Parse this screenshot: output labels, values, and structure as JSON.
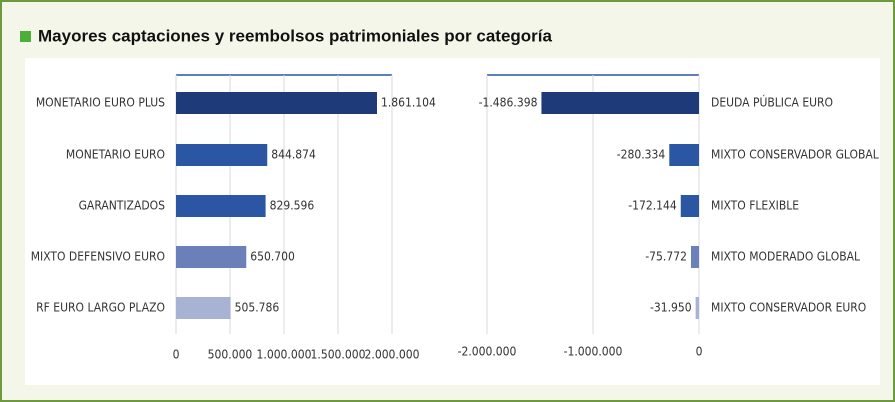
{
  "title": "Mayores captaciones y reembolsos patrimoniales por categoría",
  "chart_data": [
    {
      "type": "barh",
      "categories": [
        "MONETARIO EURO PLUS",
        "MONETARIO EURO",
        "GARANTIZADOS",
        "MIXTO DEFENSIVO EURO",
        "RF EURO LARGO PLAZO"
      ],
      "values": [
        1861104,
        844874,
        829596,
        650700,
        505786
      ],
      "value_labels": [
        "1.861.104",
        "844.874",
        "829.596",
        "650.700",
        "505.786"
      ],
      "colors": [
        "#1f3a78",
        "#2b56a3",
        "#2b56a3",
        "#6b80b8",
        "#a8b3d4"
      ],
      "xlim": [
        0,
        2000000
      ],
      "xticks": [
        0,
        {
          "value": 500000,
          "label": "500.000"
        },
        {
          "value": 1000000,
          "label": "1.000.000"
        },
        {
          "value": 1500000,
          "label": "1.500.000"
        },
        {
          "value": 2000000,
          "label": "2.000.000"
        }
      ],
      "grid": true
    },
    {
      "type": "barh",
      "categories": [
        "DEUDA PÚBLICA EURO",
        "MIXTO CONSERVADOR GLOBAL",
        "MIXTO FLEXIBLE",
        "MIXTO MODERADO GLOBAL",
        "MIXTO CONSERVADOR EURO"
      ],
      "values": [
        -1486398,
        -280334,
        -172144,
        -75772,
        -31950
      ],
      "value_labels": [
        "-1.486.398",
        "-280.334",
        "-172.144",
        "-75.772",
        "-31.950"
      ],
      "colors": [
        "#1f3a78",
        "#2b56a3",
        "#2b56a3",
        "#6b80b8",
        "#a8b3d4"
      ],
      "xlim": [
        -2000000,
        0
      ],
      "xticks": [
        {
          "value": -2000000,
          "label": "-2.000.000"
        },
        {
          "value": -1000000,
          "label": "-1.000.000"
        },
        0
      ],
      "grid": true
    }
  ]
}
